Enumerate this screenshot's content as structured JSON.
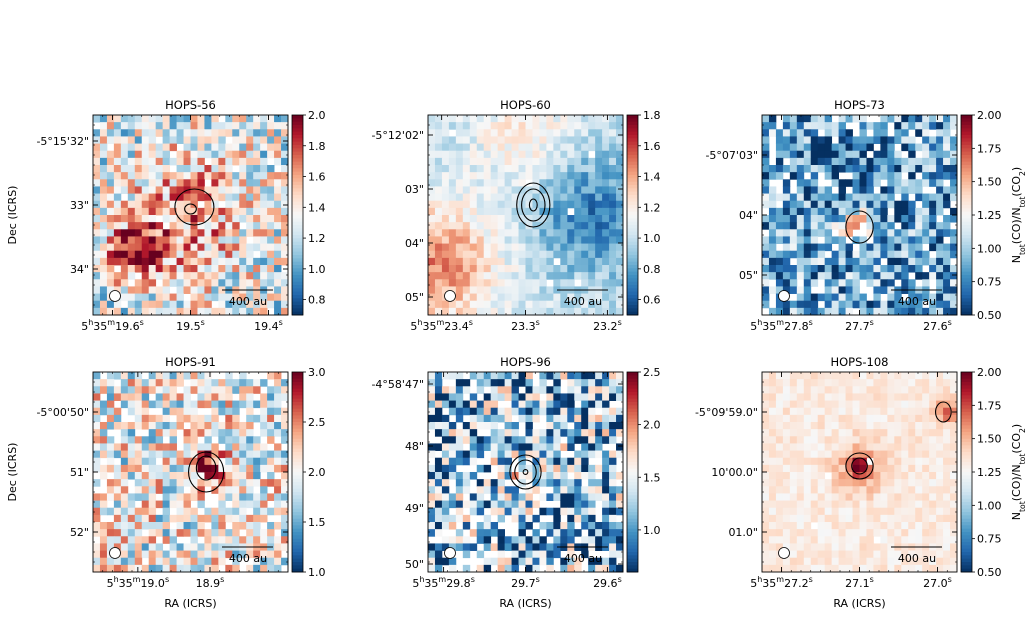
{
  "chart_data": {
    "type": "heatmap",
    "figure": {
      "dec_label": "Dec (ICRS)",
      "ra_label": "RA (ICRS)",
      "colorbar_label_html": "N<tspan baseline-shift=\"sub\" font-size=\"70%\">tot</tspan>(CO)/N<tspan baseline-shift=\"sub\" font-size=\"70%\">tot</tspan>(CO<tspan baseline-shift=\"sub\" font-size=\"70%\">2</tspan>)",
      "scalebar_label": "400 au",
      "colormap": "RdBu_r",
      "color_low": "#053061",
      "color_mid": "#f7f7f7",
      "color_high": "#67001f"
    },
    "panels": [
      {
        "title": "HOPS-56",
        "grid": [
          28,
          28
        ],
        "seed": 11,
        "vmin": 0.7,
        "vmax": 2.0,
        "cbar_ticks": [
          "2.0",
          "1.8",
          "1.6",
          "1.4",
          "1.2",
          "1.0",
          "0.8"
        ],
        "cbar_values": [
          2.0,
          1.8,
          1.6,
          1.4,
          1.2,
          1.0,
          0.8
        ],
        "y_ticks": [
          "-5°15'32\"",
          "33\"",
          "34\""
        ],
        "y_fracs": [
          0.13,
          0.45,
          0.77
        ],
        "x_ticks": [
          "5h35m19.6s",
          "19.5s",
          "19.4s"
        ],
        "x_fracs": [
          0.1,
          0.5,
          0.9
        ],
        "background": 0.45,
        "noise": 0.55,
        "nan_frac": 0.04,
        "blobs": [
          {
            "x": 0.23,
            "y": 0.68,
            "r": 0.14,
            "a": 0.55
          },
          {
            "x": 0.5,
            "y": 0.5,
            "r": 0.3,
            "a": 0.25
          }
        ],
        "contours": [
          {
            "x": 0.52,
            "y": 0.46,
            "rx": 0.1,
            "ry": 0.09
          },
          {
            "x": 0.5,
            "y": 0.47,
            "rx": 0.03,
            "ry": 0.025
          }
        ],
        "show_cbar_label": false,
        "show_dec_label": true,
        "show_ra_label": false
      },
      {
        "title": "HOPS-60",
        "grid": [
          28,
          28
        ],
        "seed": 23,
        "vmin": 0.5,
        "vmax": 1.8,
        "cbar_ticks": [
          "1.8",
          "1.6",
          "1.4",
          "1.2",
          "1.0",
          "0.8",
          "0.6"
        ],
        "cbar_values": [
          1.8,
          1.6,
          1.4,
          1.2,
          1.0,
          0.8,
          0.6
        ],
        "y_ticks": [
          "-5°12'02\"",
          "03\"",
          "04\"",
          "05\""
        ],
        "y_fracs": [
          0.1,
          0.37,
          0.64,
          0.91
        ],
        "x_ticks": [
          "5h35m23.4s",
          "23.3s",
          "23.2s"
        ],
        "x_fracs": [
          0.07,
          0.5,
          0.92
        ],
        "background": 0.4,
        "noise": 0.18,
        "nan_frac": 0.01,
        "blobs": [
          {
            "x": 0.05,
            "y": 0.75,
            "r": 0.3,
            "a": 0.35
          },
          {
            "x": 0.5,
            "y": 0.1,
            "r": 0.25,
            "a": 0.15
          },
          {
            "x": 0.85,
            "y": 0.5,
            "r": 0.3,
            "a": -0.25
          }
        ],
        "contours": [
          {
            "x": 0.54,
            "y": 0.45,
            "rx": 0.085,
            "ry": 0.11
          },
          {
            "x": 0.54,
            "y": 0.45,
            "rx": 0.06,
            "ry": 0.08
          },
          {
            "x": 0.54,
            "y": 0.45,
            "rx": 0.02,
            "ry": 0.03
          }
        ],
        "show_cbar_label": false,
        "show_dec_label": false,
        "show_ra_label": false
      },
      {
        "title": "HOPS-73",
        "grid": [
          28,
          28
        ],
        "seed": 37,
        "vmin": 0.5,
        "vmax": 2.0,
        "cbar_ticks": [
          "2.00",
          "1.75",
          "1.50",
          "1.25",
          "1.00",
          "0.75",
          "0.50"
        ],
        "cbar_values": [
          2.0,
          1.75,
          1.5,
          1.25,
          1.0,
          0.75,
          0.5
        ],
        "y_ticks": [
          "-5°07'03\"",
          "04\"",
          "05\""
        ],
        "y_fracs": [
          0.2,
          0.5,
          0.8
        ],
        "x_ticks": [
          "5h35m27.8s",
          "27.7s",
          "27.6s"
        ],
        "x_fracs": [
          0.1,
          0.5,
          0.9
        ],
        "background": 0.25,
        "noise": 0.5,
        "nan_frac": 0.12,
        "blobs": [
          {
            "x": 0.48,
            "y": 0.55,
            "r": 0.08,
            "a": 0.55
          },
          {
            "x": 0.5,
            "y": 0.3,
            "r": 0.3,
            "a": -0.15
          }
        ],
        "contours": [
          {
            "x": 0.5,
            "y": 0.56,
            "rx": 0.07,
            "ry": 0.08
          }
        ],
        "show_cbar_label": true,
        "show_dec_label": false,
        "show_ra_label": false
      },
      {
        "title": "HOPS-91",
        "grid": [
          28,
          28
        ],
        "seed": 53,
        "vmin": 1.0,
        "vmax": 3.0,
        "cbar_ticks": [
          "3.0",
          "2.5",
          "2.0",
          "1.5",
          "1.0"
        ],
        "cbar_values": [
          3.0,
          2.5,
          2.0,
          1.5,
          1.0
        ],
        "y_ticks": [
          "-5°00'50\"",
          "51\"",
          "52\""
        ],
        "y_fracs": [
          0.2,
          0.5,
          0.8
        ],
        "x_ticks": [
          "5h35m19.0s",
          "18.9s"
        ],
        "x_fracs": [
          0.23,
          0.6
        ],
        "background": 0.5,
        "noise": 0.6,
        "nan_frac": 0.14,
        "blobs": [
          {
            "x": 0.58,
            "y": 0.48,
            "r": 0.09,
            "a": 0.45
          }
        ],
        "contours": [
          {
            "x": 0.58,
            "y": 0.5,
            "rx": 0.09,
            "ry": 0.1
          },
          {
            "x": 0.58,
            "y": 0.48,
            "rx": 0.05,
            "ry": 0.06
          }
        ],
        "show_cbar_label": false,
        "show_dec_label": true,
        "show_ra_label": true
      },
      {
        "title": "HOPS-96",
        "grid": [
          28,
          28
        ],
        "seed": 71,
        "vmin": 0.6,
        "vmax": 2.5,
        "cbar_ticks": [
          "2.5",
          "2.0",
          "1.5",
          "1.0"
        ],
        "cbar_values": [
          2.5,
          2.0,
          1.5,
          1.0
        ],
        "y_ticks": [
          "-4°58'47\"",
          "48\"",
          "49\"",
          "50\""
        ],
        "y_fracs": [
          0.06,
          0.37,
          0.68,
          0.96
        ],
        "x_ticks": [
          "5h35m29.8s",
          "29.7s",
          "29.6s"
        ],
        "x_fracs": [
          0.08,
          0.5,
          0.92
        ],
        "background": 0.3,
        "noise": 0.75,
        "nan_frac": 0.2,
        "blobs": [
          {
            "x": 0.5,
            "y": 0.5,
            "r": 0.05,
            "a": 0.5
          }
        ],
        "contours": [
          {
            "x": 0.5,
            "y": 0.5,
            "rx": 0.08,
            "ry": 0.085
          },
          {
            "x": 0.5,
            "y": 0.5,
            "rx": 0.055,
            "ry": 0.06
          },
          {
            "x": 0.5,
            "y": 0.5,
            "rx": 0.012,
            "ry": 0.012
          }
        ],
        "show_cbar_label": false,
        "show_dec_label": false,
        "show_ra_label": true
      },
      {
        "title": "HOPS-108",
        "grid": [
          28,
          28
        ],
        "seed": 89,
        "vmin": 0.5,
        "vmax": 2.0,
        "cbar_ticks": [
          "2.00",
          "1.75",
          "1.50",
          "1.25",
          "1.00",
          "0.75",
          "0.50"
        ],
        "cbar_values": [
          2.0,
          1.75,
          1.5,
          1.25,
          1.0,
          0.75,
          0.5
        ],
        "y_ticks": [
          "-5°09'59.0\"",
          "10'00.0\"",
          "01.0\""
        ],
        "y_fracs": [
          0.2,
          0.5,
          0.8
        ],
        "x_ticks": [
          "5h35m27.2s",
          "27.1s",
          "27.0s"
        ],
        "x_fracs": [
          0.1,
          0.5,
          0.9
        ],
        "background": 0.55,
        "noise": 0.12,
        "nan_frac": 0.005,
        "blobs": [
          {
            "x": 0.5,
            "y": 0.48,
            "r": 0.12,
            "a": 0.2
          },
          {
            "x": 0.5,
            "y": 0.47,
            "r": 0.04,
            "a": 0.35
          },
          {
            "x": 0.95,
            "y": 0.2,
            "r": 0.06,
            "a": 0.25
          }
        ],
        "contours": [
          {
            "x": 0.5,
            "y": 0.47,
            "rx": 0.07,
            "ry": 0.065
          },
          {
            "x": 0.5,
            "y": 0.47,
            "rx": 0.04,
            "ry": 0.04
          },
          {
            "x": 0.93,
            "y": 0.2,
            "rx": 0.04,
            "ry": 0.05
          }
        ],
        "show_cbar_label": true,
        "show_dec_label": false,
        "show_ra_label": true
      }
    ]
  }
}
